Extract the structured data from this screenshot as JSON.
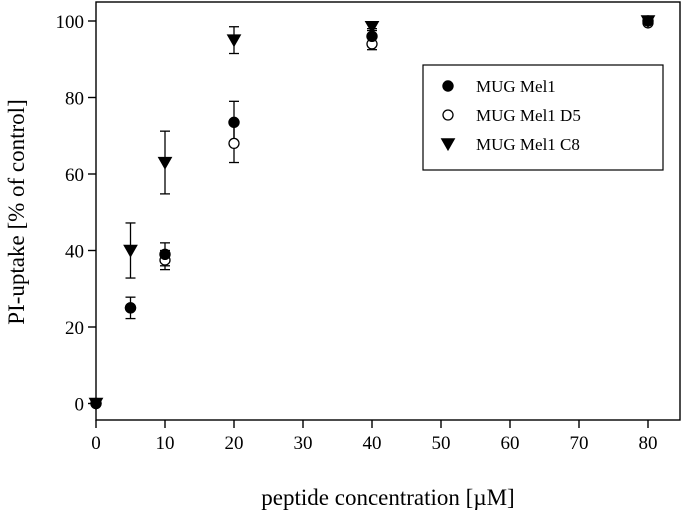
{
  "chart_data": {
    "type": "scatter",
    "xlabel": "peptide concentration [µM]",
    "ylabel": "PI-uptake [% of control]",
    "xlim": [
      0,
      85
    ],
    "ylim": [
      -4,
      104
    ],
    "x_ticks": [
      0,
      10,
      20,
      30,
      40,
      50,
      60,
      70,
      80
    ],
    "y_ticks": [
      0,
      20,
      40,
      60,
      80,
      100
    ],
    "legend_position": "top-right",
    "grid": false,
    "series": [
      {
        "name": "MUG Mel1",
        "marker": "filled-circle",
        "points": [
          {
            "x": 0,
            "y": 0,
            "err": 0
          },
          {
            "x": 5,
            "y": 25,
            "err": 2.8
          },
          {
            "x": 10,
            "y": 39,
            "err": 3
          },
          {
            "x": 20,
            "y": 73.5,
            "err": 5.5
          },
          {
            "x": 40,
            "y": 96,
            "err": 2
          },
          {
            "x": 80,
            "y": 100,
            "err": 0.5
          }
        ]
      },
      {
        "name": "MUG Mel1 D5",
        "marker": "open-circle",
        "points": [
          {
            "x": 0,
            "y": 0,
            "err": 0
          },
          {
            "x": 5,
            "y": 25,
            "err": 0
          },
          {
            "x": 10,
            "y": 37.5,
            "err": 2.5
          },
          {
            "x": 20,
            "y": 68,
            "err": 5
          },
          {
            "x": 40,
            "y": 94,
            "err": 1.5
          },
          {
            "x": 80,
            "y": 99.5,
            "err": 0.5
          }
        ]
      },
      {
        "name": "MUG Mel1 C8",
        "marker": "filled-triangle-down",
        "points": [
          {
            "x": 0,
            "y": 0,
            "err": 0
          },
          {
            "x": 5,
            "y": 40,
            "err": 7.2
          },
          {
            "x": 10,
            "y": 63,
            "err": 8.2
          },
          {
            "x": 20,
            "y": 95,
            "err": 3.5
          },
          {
            "x": 40,
            "y": 98.5,
            "err": 1
          },
          {
            "x": 80,
            "y": 100,
            "err": 0
          }
        ]
      }
    ]
  }
}
